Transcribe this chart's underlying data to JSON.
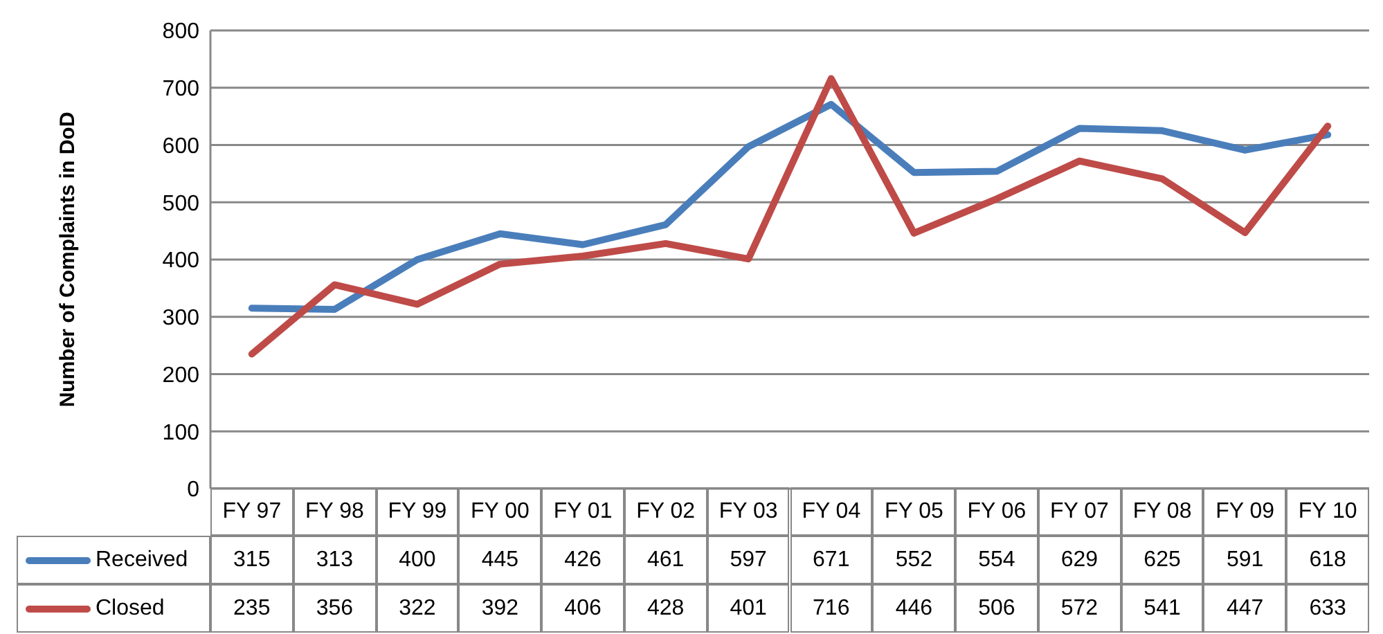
{
  "chart_data": {
    "type": "line",
    "ylabel": "Number of Complaints in DoD",
    "categories": [
      "FY 97",
      "FY 98",
      "FY 99",
      "FY 00",
      "FY 01",
      "FY 02",
      "FY 03",
      "FY 04",
      "FY 05",
      "FY 06",
      "FY 07",
      "FY 08",
      "FY 09",
      "FY 10"
    ],
    "series": [
      {
        "name": "Received",
        "color": "#4a7ebb",
        "values": [
          315,
          313,
          400,
          445,
          426,
          461,
          597,
          671,
          552,
          554,
          629,
          625,
          591,
          618
        ]
      },
      {
        "name": "Closed",
        "color": "#be4b48",
        "values": [
          235,
          356,
          322,
          392,
          406,
          428,
          401,
          716,
          446,
          506,
          572,
          541,
          447,
          633
        ]
      }
    ],
    "ylim": [
      0,
      800
    ],
    "yticks": [
      0,
      100,
      200,
      300,
      400,
      500,
      600,
      700,
      800
    ],
    "grid": "y",
    "legend": "bottom",
    "data_labels": true,
    "marker": "none",
    "line_style": "solid"
  }
}
